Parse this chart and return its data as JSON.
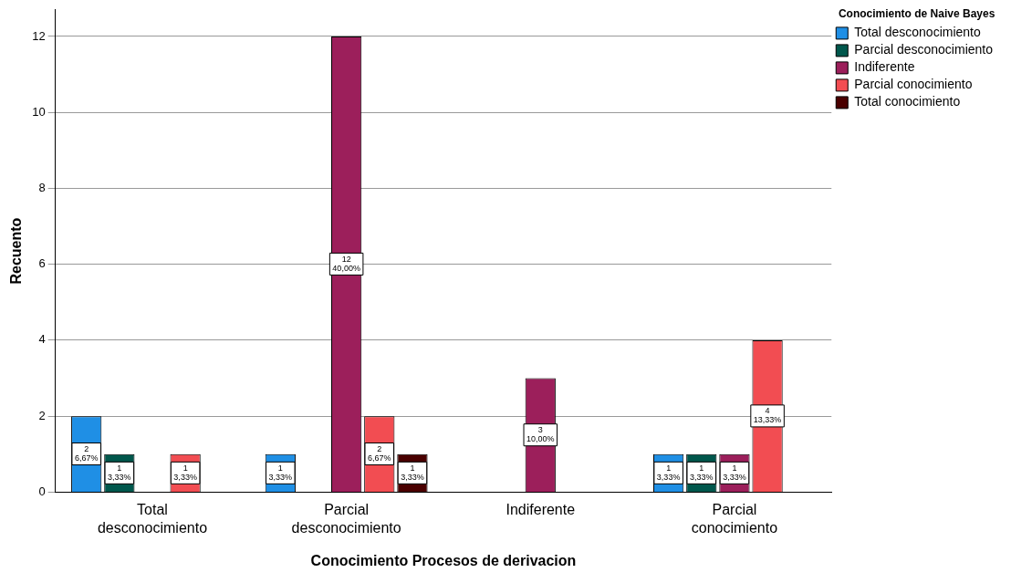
{
  "chart_data": {
    "type": "bar",
    "xlabel": "Conocimiento Procesos de derivacion",
    "ylabel": "Recuento",
    "legend_title": "Conocimiento de Naive Bayes",
    "legend": "top right",
    "grid": "y",
    "categories": [
      "Total desconocimiento",
      "Parcial desconocimiento",
      "Indiferente",
      "Parcial conocimiento"
    ],
    "ylim": [
      0,
      12.7
    ],
    "yticks": [
      0,
      2,
      4,
      6,
      8,
      10,
      12
    ],
    "series": [
      {
        "name": "Total desconocimiento",
        "color": "#1f8fe5",
        "values": [
          2,
          1,
          null,
          1
        ],
        "value_labels": [
          "2\n6,67%",
          "1\n3,33%",
          null,
          "1\n3,33%"
        ]
      },
      {
        "name": "Parcial desconocimiento",
        "color": "#00574c",
        "values": [
          1,
          null,
          null,
          1
        ],
        "value_labels": [
          "1\n3,33%",
          null,
          null,
          "1\n3,33%"
        ]
      },
      {
        "name": "Indiferente",
        "color": "#9c1f5b",
        "values": [
          null,
          12,
          3,
          1
        ],
        "value_labels": [
          null,
          "12\n40,00%",
          "3\n10,00%",
          "1\n3,33%"
        ]
      },
      {
        "name": "Parcial conocimiento",
        "color": "#f24d52",
        "values": [
          1,
          2,
          null,
          4
        ],
        "value_labels": [
          "1\n3,33%",
          "2\n6,67%",
          null,
          "4\n13,33%"
        ]
      },
      {
        "name": "Total conocimiento",
        "color": "#4a0000",
        "values": [
          null,
          1,
          null,
          null
        ],
        "value_labels": [
          null,
          "1\n3,33%",
          null,
          null
        ]
      }
    ]
  }
}
